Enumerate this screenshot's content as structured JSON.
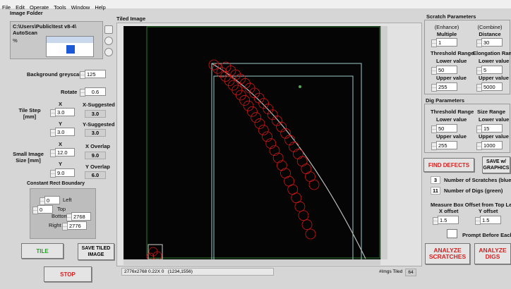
{
  "menu": [
    "File",
    "Edit",
    "Operate",
    "Tools",
    "Window",
    "Help"
  ],
  "left": {
    "image_folder": "Image Folder",
    "path_lines": [
      "C:\\Users\\Public\\test v8-4\\",
      "AutoScan"
    ],
    "path_mark": "%",
    "background_greyscale": {
      "label": "Background greyscale",
      "value": "125"
    },
    "rotate": {
      "label": "Rotate",
      "value": "0.6"
    },
    "tile_step": {
      "label": "Tile Step [mm]",
      "x_label": "X",
      "x": "3.0",
      "y_label": "Y",
      "y": "3.0",
      "x_suggested_label": "X-Suggested",
      "x_suggested": "3.0",
      "y_suggested_label": "Y-Suggested",
      "y_suggested": "3.0"
    },
    "small_image": {
      "label": "Small Image Size [mm]",
      "x_label": "X",
      "x": "12.0",
      "y_label": "Y",
      "y": "9.0",
      "x_overlap_label": "X Overlap",
      "x_overlap": "9.0",
      "y_overlap_label": "Y Overlap",
      "y_overlap": "6.0"
    },
    "boundary": {
      "title": "Constant Rect Boundary",
      "left_label": "Left",
      "left": "0",
      "top_label": "Top",
      "top": "0",
      "bottom_label": "Bottom",
      "bottom": "2768",
      "right_label": "Right",
      "right": "2776"
    },
    "buttons": {
      "tile": "TILE",
      "save_tiled": "SAVE TILED IMAGE",
      "stop": "STOP"
    }
  },
  "center": {
    "title": "Tiled Image",
    "status": "2776x2768 0.22X 0   (1234,1556)",
    "imgs_tiled_label": "#Imgs Tiled",
    "imgs_tiled": "64"
  },
  "right": {
    "scratch": {
      "title": "Scratch Parameters",
      "enhance": "(Enhance)",
      "combine": "(Combine)",
      "multiple_label": "Multiple",
      "multiple": "1",
      "distance_label": "Distance",
      "distance": "30",
      "threshold_label": "Threshold Range",
      "elongation_label": "Elongation Range",
      "lower_label": "Lower value",
      "upper_label": "Upper value",
      "threshold_lower": "50",
      "threshold_upper": "255",
      "elongation_lower": "5",
      "elongation_upper": "5000"
    },
    "dig": {
      "title": "Dig Parameters",
      "threshold_label": "Threshold Range",
      "size_label": "Size Range",
      "lower_label": "Lower value",
      "upper_label": "Upper value",
      "threshold_lower": "50",
      "threshold_upper": "255",
      "size_lower": "15",
      "size_upper": "1000"
    },
    "find_defects": "FIND DEFECTS",
    "save_graphics": "SAVE w/ GRAPHICS",
    "scratches": {
      "value": "3",
      "label": "Number of Scratches (blue)"
    },
    "digs": {
      "value": "11",
      "label": "Number of Digs (green)"
    },
    "offset": {
      "title": "Measure Box Offset from Top Left",
      "x_label": "X offset",
      "x": "1.5",
      "y_label": "Y offset",
      "y": "1.5"
    },
    "prompt": "Prompt Before Each",
    "analyze_scratches": "ANALYZE SCRATCHES",
    "analyze_digs": "ANALYZE DIGS"
  }
}
